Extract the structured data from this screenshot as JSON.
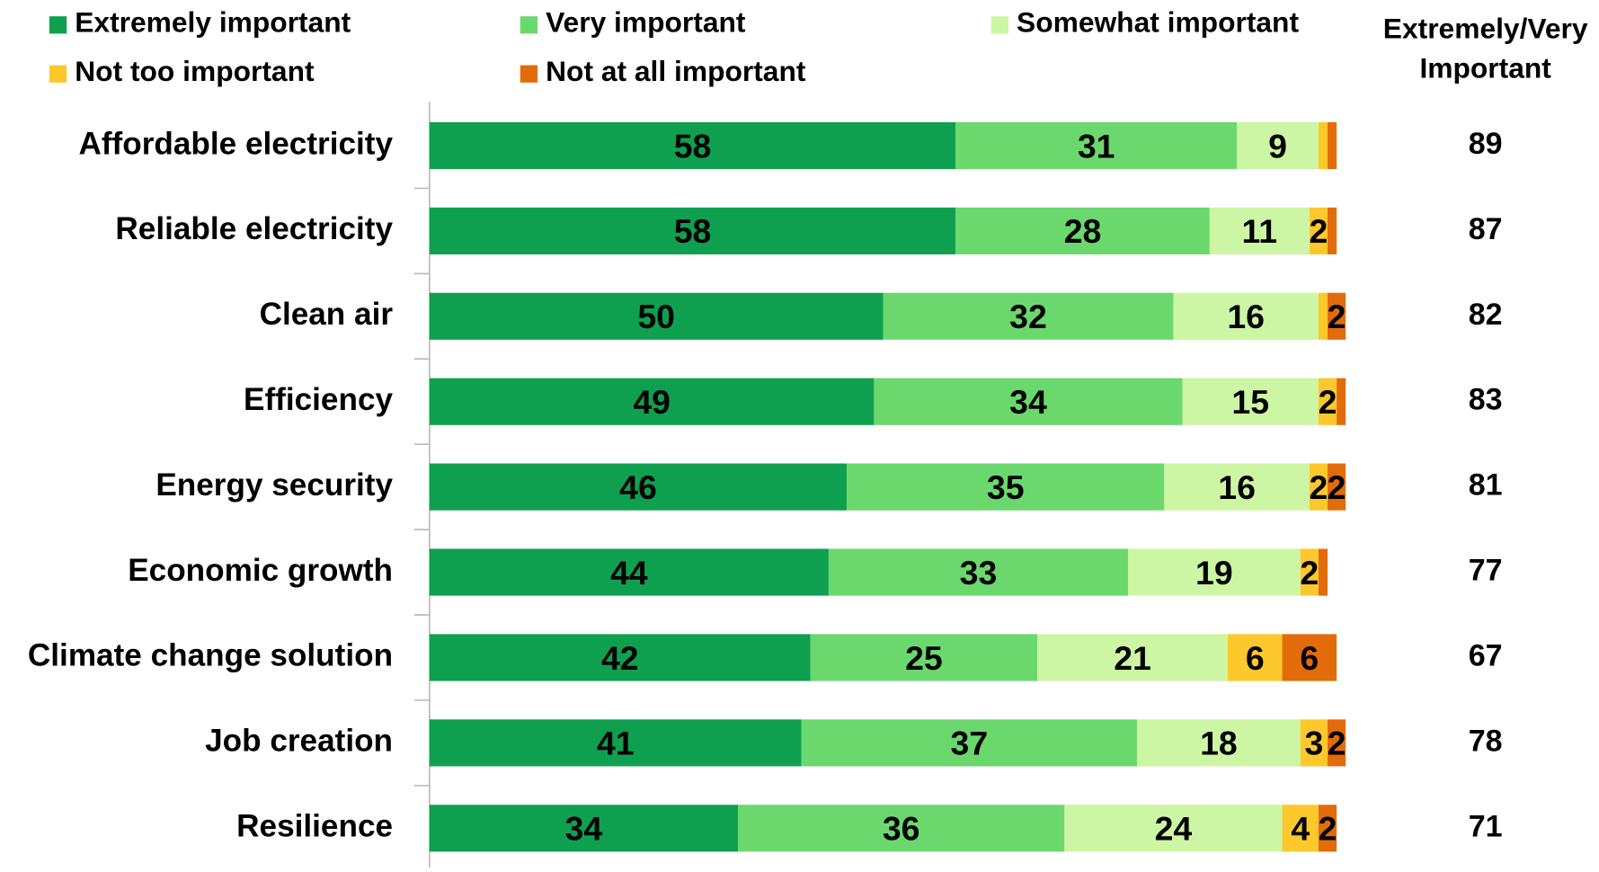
{
  "chart_data": {
    "type": "stacked-bar-horizontal",
    "categories": [
      "Affordable electricity",
      "Reliable electricity",
      "Clean air",
      "Efficiency",
      "Energy security",
      "Economic growth",
      "Climate change solution",
      "Job creation",
      "Resilience"
    ],
    "xlim": [
      0,
      100
    ],
    "series": [
      {
        "name": "Extremely important",
        "color": "#0fa04f",
        "values": [
          58,
          58,
          50,
          49,
          46,
          44,
          42,
          41,
          34
        ]
      },
      {
        "name": "Very important",
        "color": "#6bd86d",
        "values": [
          31,
          28,
          32,
          34,
          35,
          33,
          25,
          37,
          36
        ]
      },
      {
        "name": "Somewhat important",
        "color": "#ccf6a3",
        "values": [
          9,
          11,
          16,
          15,
          16,
          19,
          21,
          18,
          24
        ]
      },
      {
        "name": "Not too important",
        "color": "#fdc82c",
        "values": [
          1,
          2,
          1,
          2,
          2,
          2,
          6,
          3,
          4
        ],
        "value_labels": [
          null,
          2,
          null,
          2,
          2,
          2,
          6,
          3,
          4
        ]
      },
      {
        "name": "Not at all important",
        "color": "#e36c0a",
        "values": [
          1,
          1,
          2,
          1,
          2,
          1,
          6,
          2,
          2
        ],
        "value_labels": [
          null,
          null,
          2,
          null,
          2,
          null,
          6,
          2,
          2
        ]
      }
    ],
    "totals": {
      "title_lines": [
        "Extremely/Very",
        "Important"
      ],
      "values": [
        89,
        87,
        82,
        83,
        81,
        77,
        67,
        78,
        71
      ]
    }
  }
}
